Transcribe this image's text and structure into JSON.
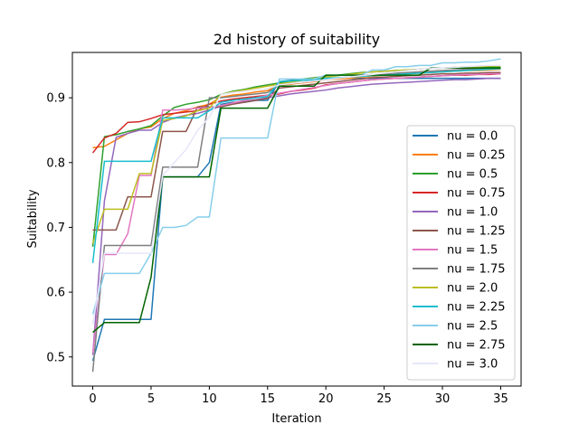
{
  "chart_data": {
    "type": "line",
    "title": "2d history of suitability",
    "xlabel": "Iteration",
    "ylabel": "Suitability",
    "xlim": [
      -1.75,
      36.75
    ],
    "ylim": [
      0.455,
      0.97
    ],
    "xticks": [
      0,
      5,
      10,
      15,
      20,
      25,
      30,
      35
    ],
    "yticks": [
      0.5,
      0.6,
      0.7,
      0.8,
      0.9
    ],
    "ytick_labels": [
      "0.5",
      "0.6",
      "0.7",
      "0.8",
      "0.9"
    ],
    "grid": false,
    "legend_position": "lower-right",
    "series": [
      {
        "name": "nu = 0.0",
        "color": "#1f77b4",
        "values": [
          0.494,
          0.558,
          0.558,
          0.558,
          0.558,
          0.558,
          0.778,
          0.778,
          0.778,
          0.778,
          0.8,
          0.89,
          0.893,
          0.893,
          0.896,
          0.896,
          0.925,
          0.927,
          0.927,
          0.928,
          0.93,
          0.93,
          0.93,
          0.93,
          0.93,
          0.93,
          0.93,
          0.93,
          0.93,
          0.93,
          0.93,
          0.93,
          0.93,
          0.93,
          0.93,
          0.93
        ]
      },
      {
        "name": "nu = 0.25",
        "color": "#ff7f0e",
        "values": [
          0.823,
          0.825,
          0.835,
          0.845,
          0.852,
          0.855,
          0.868,
          0.876,
          0.88,
          0.886,
          0.89,
          0.901,
          0.904,
          0.906,
          0.909,
          0.911,
          0.92,
          0.921,
          0.923,
          0.925,
          0.928,
          0.929,
          0.93,
          0.932,
          0.933,
          0.935,
          0.936,
          0.937,
          0.938,
          0.939,
          0.94,
          0.941,
          0.942,
          0.942,
          0.943,
          0.944
        ]
      },
      {
        "name": "nu = 0.5",
        "color": "#2ca02c",
        "values": [
          0.67,
          0.84,
          0.843,
          0.848,
          0.852,
          0.857,
          0.872,
          0.885,
          0.89,
          0.893,
          0.897,
          0.905,
          0.91,
          0.913,
          0.917,
          0.92,
          0.923,
          0.926,
          0.929,
          0.931,
          0.933,
          0.935,
          0.937,
          0.939,
          0.94,
          0.941,
          0.942,
          0.943,
          0.944,
          0.945,
          0.946,
          0.946,
          0.947,
          0.947,
          0.948,
          0.948
        ]
      },
      {
        "name": "nu = 0.75",
        "color": "#d62728",
        "values": [
          0.815,
          0.838,
          0.845,
          0.862,
          0.863,
          0.868,
          0.874,
          0.876,
          0.878,
          0.88,
          0.89,
          0.895,
          0.898,
          0.9,
          0.902,
          0.904,
          0.906,
          0.91,
          0.912,
          0.915,
          0.92,
          0.922,
          0.924,
          0.926,
          0.928,
          0.929,
          0.93,
          0.931,
          0.932,
          0.933,
          0.934,
          0.935,
          0.935,
          0.936,
          0.936,
          0.937
        ]
      },
      {
        "name": "nu = 1.0",
        "color": "#9467bd",
        "values": [
          0.503,
          0.741,
          0.839,
          0.845,
          0.85,
          0.85,
          0.862,
          0.869,
          0.873,
          0.876,
          0.881,
          0.887,
          0.891,
          0.894,
          0.897,
          0.9,
          0.903,
          0.906,
          0.908,
          0.91,
          0.912,
          0.915,
          0.917,
          0.919,
          0.921,
          0.922,
          0.923,
          0.924,
          0.925,
          0.926,
          0.927,
          0.928,
          0.928,
          0.929,
          0.93,
          0.93
        ]
      },
      {
        "name": "nu = 1.25",
        "color": "#8c564b",
        "values": [
          0.696,
          0.696,
          0.696,
          0.747,
          0.747,
          0.747,
          0.848,
          0.848,
          0.848,
          0.886,
          0.886,
          0.886,
          0.89,
          0.893,
          0.896,
          0.899,
          0.915,
          0.917,
          0.919,
          0.921,
          0.923,
          0.925,
          0.927,
          0.929,
          0.931,
          0.932,
          0.933,
          0.934,
          0.935,
          0.936,
          0.937,
          0.937,
          0.938,
          0.938,
          0.939,
          0.939
        ]
      },
      {
        "name": "nu = 1.5",
        "color": "#e377c2",
        "values": [
          0.506,
          0.658,
          0.658,
          0.69,
          0.78,
          0.78,
          0.881,
          0.881,
          0.882,
          0.884,
          0.885,
          0.888,
          0.892,
          0.896,
          0.9,
          0.904,
          0.907,
          0.91,
          0.913,
          0.916,
          0.919,
          0.922,
          0.924,
          0.926,
          0.928,
          0.929,
          0.93,
          0.931,
          0.932,
          0.933,
          0.934,
          0.935,
          0.936,
          0.936,
          0.937,
          0.937
        ]
      },
      {
        "name": "nu = 1.75",
        "color": "#7f7f7f",
        "values": [
          0.477,
          0.672,
          0.672,
          0.672,
          0.672,
          0.672,
          0.793,
          0.793,
          0.793,
          0.793,
          0.9,
          0.9,
          0.902,
          0.904,
          0.906,
          0.908,
          0.92,
          0.922,
          0.924,
          0.926,
          0.928,
          0.93,
          0.932,
          0.934,
          0.936,
          0.937,
          0.938,
          0.939,
          0.94,
          0.941,
          0.942,
          0.943,
          0.944,
          0.944,
          0.945,
          0.945
        ]
      },
      {
        "name": "nu = 2.0",
        "color": "#bcbd22",
        "values": [
          0.675,
          0.728,
          0.728,
          0.728,
          0.783,
          0.783,
          0.865,
          0.868,
          0.872,
          0.88,
          0.884,
          0.905,
          0.909,
          0.912,
          0.915,
          0.918,
          0.921,
          0.924,
          0.927,
          0.93,
          0.932,
          0.934,
          0.936,
          0.938,
          0.94,
          0.941,
          0.942,
          0.943,
          0.944,
          0.945,
          0.946,
          0.947,
          0.948,
          0.948,
          0.949,
          0.949
        ]
      },
      {
        "name": "nu = 2.25",
        "color": "#17becf",
        "values": [
          0.645,
          0.802,
          0.802,
          0.802,
          0.802,
          0.802,
          0.869,
          0.869,
          0.869,
          0.869,
          0.88,
          0.893,
          0.896,
          0.898,
          0.9,
          0.902,
          0.925,
          0.926,
          0.927,
          0.928,
          0.93,
          0.931,
          0.932,
          0.933,
          0.934,
          0.935,
          0.936,
          0.937,
          0.938,
          0.939,
          0.94,
          0.941,
          0.942,
          0.943,
          0.944,
          0.945
        ]
      },
      {
        "name": "nu = 2.5",
        "color": "#87ceeb",
        "values": [
          0.566,
          0.629,
          0.629,
          0.629,
          0.629,
          0.66,
          0.7,
          0.7,
          0.703,
          0.716,
          0.716,
          0.838,
          0.838,
          0.838,
          0.838,
          0.838,
          0.929,
          0.929,
          0.929,
          0.929,
          0.935,
          0.935,
          0.935,
          0.935,
          0.943,
          0.943,
          0.948,
          0.948,
          0.95,
          0.95,
          0.954,
          0.954,
          0.955,
          0.955,
          0.957,
          0.96
        ]
      },
      {
        "name": "nu = 2.75",
        "color": "#006400",
        "values": [
          0.538,
          0.553,
          0.553,
          0.553,
          0.553,
          0.623,
          0.778,
          0.778,
          0.778,
          0.778,
          0.778,
          0.884,
          0.884,
          0.884,
          0.884,
          0.884,
          0.918,
          0.918,
          0.918,
          0.918,
          0.935,
          0.935,
          0.935,
          0.935,
          0.935,
          0.935,
          0.935,
          0.935,
          0.935,
          0.946,
          0.946,
          0.946,
          0.946,
          0.946,
          0.946,
          0.946
        ]
      },
      {
        "name": "nu = 3.0",
        "color": "#e6e6fa",
        "values": [
          0.55,
          0.66,
          0.66,
          0.66,
          0.66,
          0.66,
          0.78,
          0.8,
          0.82,
          0.85,
          0.87,
          0.905,
          0.908,
          0.91,
          0.912,
          0.914,
          0.92,
          0.922,
          0.924,
          0.926,
          0.928,
          0.93,
          0.932,
          0.934,
          0.936,
          0.938,
          0.94,
          0.942,
          0.944,
          0.945,
          0.946,
          0.947,
          0.948,
          0.949,
          0.95,
          0.95
        ]
      }
    ]
  }
}
